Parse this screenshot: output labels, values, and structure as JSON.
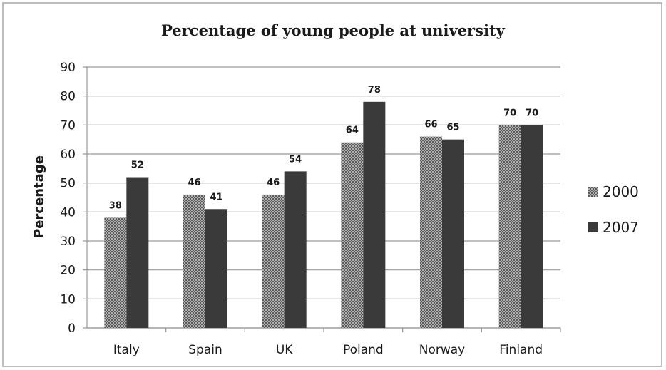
{
  "chart_data": {
    "type": "bar",
    "title": "Percentage of young people at university",
    "xlabel": "",
    "ylabel": "Percentage",
    "categories": [
      "Italy",
      "Spain",
      "UK",
      "Poland",
      "Norway",
      "Finland"
    ],
    "series": [
      {
        "name": "2000",
        "values": [
          38,
          46,
          46,
          64,
          66,
          70
        ],
        "color": "#8a8a8a",
        "pattern": "dotted"
      },
      {
        "name": "2007",
        "values": [
          52,
          41,
          54,
          78,
          65,
          70
        ],
        "color": "#3a3a3a",
        "pattern": "solid"
      }
    ],
    "ylim": [
      0,
      90
    ],
    "yticks": [
      0,
      10,
      20,
      30,
      40,
      50,
      60,
      70,
      80,
      90
    ],
    "grid": true,
    "legend_position": "right"
  }
}
